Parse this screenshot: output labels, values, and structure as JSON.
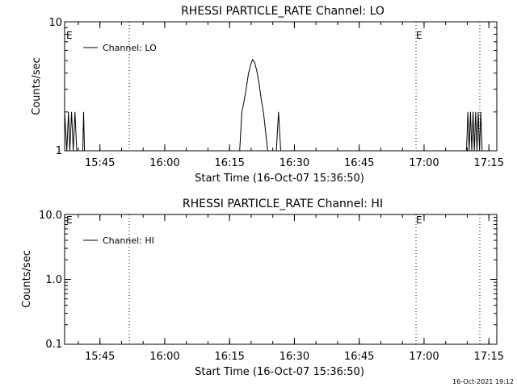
{
  "chart_data": [
    {
      "type": "line",
      "title": "RHESSI PARTICLE_RATE Channel: LO",
      "xlabel": "Start Time (16-Oct-07 15:36:50)",
      "ylabel": "Counts/sec",
      "yscale": "log",
      "ylim": [
        1,
        10
      ],
      "yticks": [
        "10",
        "1"
      ],
      "xticks": [
        "15:45",
        "16:00",
        "16:15",
        "16:30",
        "16:45",
        "17:00",
        "17:15"
      ],
      "legend": "Channel: LO",
      "legend_position": "top-left",
      "event_markers": [
        "E",
        "E"
      ],
      "series": [
        {
          "name": "Channel: LO",
          "x_minutes": [
            0,
            0.5,
            0.9,
            1.2,
            1.6,
            2.0,
            2.4,
            2.8,
            3.2,
            4.2,
            4.4,
            4.6,
            5.5,
            40.5,
            41.0,
            41.5,
            42.0,
            42.5,
            43.0,
            43.5,
            44.0,
            44.5,
            45.0,
            45.5,
            46.0,
            46.5,
            47.0,
            48.5,
            49.0,
            49.5,
            50.0,
            50.5,
            51.0,
            51.5,
            52.0,
            52.5,
            53.0,
            53.5,
            54.0,
            54.5,
            55.5,
            93.0,
            93.3,
            93.6,
            93.9,
            94.2,
            94.5,
            94.8,
            95.1,
            95.4,
            95.7,
            96.0,
            96.3,
            96.6,
            97.0
          ],
          "values": [
            2,
            1,
            2,
            1,
            2,
            1,
            2,
            1,
            1,
            1,
            2,
            1,
            1,
            1,
            2,
            2.4,
            3,
            3.9,
            4.6,
            5.1,
            4.8,
            4.1,
            3.3,
            2.5,
            2.0,
            1.4,
            1.0,
            1.0,
            1.0,
            2.0,
            1.0,
            1.0,
            1.0,
            1.0,
            1.0,
            1.0,
            1.0,
            1.0,
            1.0,
            1.0,
            1.0,
            1,
            2,
            1,
            2,
            1,
            2,
            1,
            2,
            1,
            2,
            1,
            2,
            1,
            1
          ]
        }
      ]
    },
    {
      "type": "line",
      "title": "RHESSI PARTICLE_RATE Channel: HI",
      "xlabel": "Start Time (16-Oct-07 15:36:50)",
      "ylabel": "Counts/sec",
      "yscale": "log",
      "ylim": [
        0.1,
        10
      ],
      "yticks": [
        "10.0",
        "1.0",
        "0.1"
      ],
      "xticks": [
        "15:45",
        "16:00",
        "16:15",
        "16:30",
        "16:45",
        "17:00",
        "17:15"
      ],
      "legend": "Channel: HI",
      "legend_position": "top-left",
      "event_markers": [
        "E",
        "E"
      ],
      "series": [
        {
          "name": "Channel: HI",
          "x_minutes": [],
          "values": []
        }
      ]
    }
  ],
  "footer": {
    "timestamp": "16-Oct-2021 19:12"
  }
}
